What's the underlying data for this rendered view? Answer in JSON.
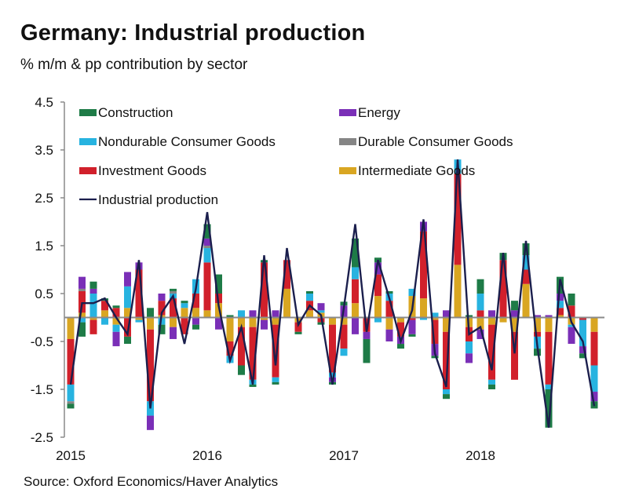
{
  "chart_data": {
    "type": "bar",
    "stacked": true,
    "title": "Germany: Industrial production",
    "subtitle": "% m/m & pp contribution by sector",
    "source": "Source: Oxford Economics/Haver Analytics",
    "xlabel": "",
    "ylabel": "",
    "ylim": [
      -2.5,
      4.5
    ],
    "yticks": [
      "4.5",
      "3.5",
      "2.5",
      "1.5",
      "0.5",
      "-0.5",
      "-1.5",
      "-2.5"
    ],
    "ytick_values": [
      4.5,
      3.5,
      2.5,
      1.5,
      0.5,
      -0.5,
      -1.5,
      -2.5
    ],
    "xtick_labels": [
      "2015",
      "2016",
      "2017",
      "2018"
    ],
    "xtick_index": [
      0,
      12,
      24,
      36
    ],
    "legend_position": "top",
    "categories": [
      "Jan-15",
      "Feb-15",
      "Mar-15",
      "Apr-15",
      "May-15",
      "Jun-15",
      "Jul-15",
      "Aug-15",
      "Sep-15",
      "Oct-15",
      "Nov-15",
      "Dec-15",
      "Jan-16",
      "Feb-16",
      "Mar-16",
      "Apr-16",
      "May-16",
      "Jun-16",
      "Jul-16",
      "Aug-16",
      "Sep-16",
      "Oct-16",
      "Nov-16",
      "Dec-16",
      "Jan-17",
      "Feb-17",
      "Mar-17",
      "Apr-17",
      "May-17",
      "Jun-17",
      "Jul-17",
      "Aug-17",
      "Sep-17",
      "Oct-17",
      "Nov-17",
      "Dec-17",
      "Jan-18",
      "Feb-18",
      "Mar-18",
      "Apr-18",
      "May-18",
      "Jun-18",
      "Jul-18",
      "Aug-18",
      "Sep-18",
      "Oct-18",
      "Nov-18"
    ],
    "series": [
      {
        "name": "Intermediate Goods",
        "color": "#d9a622",
        "kind": "bar",
        "values": [
          -0.45,
          0.1,
          -0.05,
          0.15,
          -0.15,
          0.2,
          -0.05,
          -0.25,
          0.05,
          -0.2,
          0.2,
          0.2,
          0.15,
          0.3,
          -0.5,
          -0.2,
          -0.2,
          -0.05,
          -0.15,
          0.6,
          -0.1,
          0.15,
          0.1,
          -0.15,
          -0.15,
          0.3,
          0.0,
          0.45,
          -0.25,
          -0.1,
          0.45,
          0.4,
          -0.05,
          -0.3,
          1.1,
          -0.2,
          -0.25,
          -0.15,
          -0.1,
          -0.3,
          0.7,
          -0.3,
          -0.3,
          0.05,
          -0.15,
          0.0,
          -0.3
        ]
      },
      {
        "name": "Investment Goods",
        "color": "#d1202b",
        "kind": "bar",
        "values": [
          -0.95,
          0.45,
          -0.3,
          0.2,
          0.2,
          -0.4,
          1.0,
          -1.5,
          0.3,
          0.4,
          -0.35,
          0.3,
          1.0,
          0.2,
          -0.3,
          -0.8,
          -1.1,
          1.15,
          -1.1,
          0.6,
          -0.2,
          0.2,
          -0.1,
          -1.0,
          -0.5,
          0.5,
          -0.3,
          0.45,
          0.35,
          -0.3,
          -0.05,
          1.4,
          -0.5,
          -1.2,
          1.9,
          -0.3,
          0.15,
          -1.15,
          1.2,
          -1.0,
          0.3,
          -0.1,
          -1.1,
          0.15,
          0.25,
          -0.05,
          -0.7
        ]
      },
      {
        "name": "Nondurable Consumer Goods",
        "color": "#27b3e0",
        "kind": "bar",
        "values": [
          -0.35,
          -0.1,
          0.5,
          -0.15,
          -0.15,
          0.45,
          -0.05,
          -0.3,
          -0.15,
          0.1,
          0.1,
          0.3,
          0.3,
          0.0,
          -0.15,
          0.15,
          -0.1,
          0.0,
          -0.1,
          0.0,
          0.0,
          0.15,
          0.05,
          -0.1,
          -0.15,
          0.25,
          0.0,
          -0.1,
          0.15,
          0.0,
          0.15,
          -0.05,
          0.1,
          -0.1,
          0.3,
          -0.25,
          0.35,
          -0.1,
          0.0,
          0.0,
          0.3,
          -0.25,
          -0.1,
          0.15,
          -0.05,
          -0.55,
          -0.55
        ]
      },
      {
        "name": "Durable Consumer Goods",
        "color": "#858585",
        "kind": "bar",
        "values": [
          -0.05,
          0.05,
          0.0,
          0.0,
          0.0,
          0.0,
          0.0,
          0.0,
          0.0,
          0.05,
          0.0,
          0.0,
          0.05,
          0.0,
          0.0,
          0.0,
          0.0,
          0.0,
          0.0,
          0.0,
          0.0,
          0.0,
          0.0,
          0.0,
          0.0,
          0.0,
          0.0,
          0.0,
          0.0,
          0.0,
          0.0,
          0.0,
          0.0,
          0.0,
          0.0,
          0.0,
          0.0,
          0.0,
          0.0,
          0.0,
          0.0,
          0.0,
          0.0,
          0.0,
          0.0,
          0.0,
          0.0
        ]
      },
      {
        "name": "Energy",
        "color": "#7a2fb7",
        "kind": "bar",
        "values": [
          0.0,
          0.25,
          0.1,
          0.0,
          -0.3,
          0.3,
          0.15,
          -0.3,
          0.15,
          -0.25,
          0.0,
          -0.15,
          0.15,
          -0.25,
          0.0,
          0.0,
          0.15,
          -0.2,
          0.15,
          0.0,
          0.0,
          0.0,
          0.15,
          -0.1,
          0.25,
          -0.35,
          -0.15,
          0.25,
          -0.25,
          -0.15,
          -0.3,
          0.2,
          -0.25,
          0.15,
          0.0,
          -0.2,
          -0.2,
          0.15,
          0.0,
          0.15,
          0.0,
          0.05,
          0.05,
          0.15,
          -0.35,
          -0.15,
          -0.2
        ]
      },
      {
        "name": "Construction",
        "color": "#1e7b47",
        "kind": "bar",
        "values": [
          -0.1,
          -0.3,
          0.15,
          0.05,
          0.05,
          -0.15,
          0.0,
          0.2,
          -0.2,
          0.05,
          0.05,
          -0.1,
          0.3,
          0.4,
          0.05,
          -0.2,
          -0.05,
          0.05,
          -0.05,
          0.0,
          -0.05,
          0.05,
          -0.05,
          -0.05,
          0.08,
          0.6,
          -0.5,
          0.1,
          0.05,
          -0.1,
          -0.05,
          0.0,
          -0.05,
          -0.1,
          0.0,
          0.05,
          0.3,
          -0.1,
          0.15,
          0.2,
          0.25,
          -0.15,
          -0.8,
          0.35,
          0.25,
          -0.1,
          -0.15
        ]
      },
      {
        "name": "Industrial production",
        "color": "#1b1f4d",
        "kind": "line",
        "values": [
          -1.4,
          0.3,
          0.3,
          0.4,
          0.0,
          -0.35,
          1.2,
          -1.9,
          0.1,
          0.45,
          -0.55,
          0.6,
          2.2,
          0.25,
          -0.9,
          -0.2,
          -1.4,
          1.3,
          -1.0,
          1.45,
          -0.15,
          0.25,
          0.05,
          -1.4,
          0.2,
          1.95,
          -0.3,
          1.2,
          0.4,
          -0.5,
          0.15,
          2.05,
          -0.75,
          -1.45,
          3.3,
          -0.35,
          -0.2,
          -1.1,
          1.35,
          -0.75,
          1.6,
          -0.6,
          -2.3,
          0.8,
          -0.1,
          -0.5,
          -1.85
        ]
      }
    ],
    "legend": [
      {
        "name": "Construction",
        "symbol": "box"
      },
      {
        "name": "Energy",
        "symbol": "box"
      },
      {
        "name": "Nondurable Consumer Goods",
        "symbol": "box"
      },
      {
        "name": "Durable Consumer Goods",
        "symbol": "box"
      },
      {
        "name": "Investment Goods",
        "symbol": "box"
      },
      {
        "name": "Intermediate Goods",
        "symbol": "box"
      },
      {
        "name": "Industrial production",
        "symbol": "line"
      }
    ],
    "grid": false
  }
}
